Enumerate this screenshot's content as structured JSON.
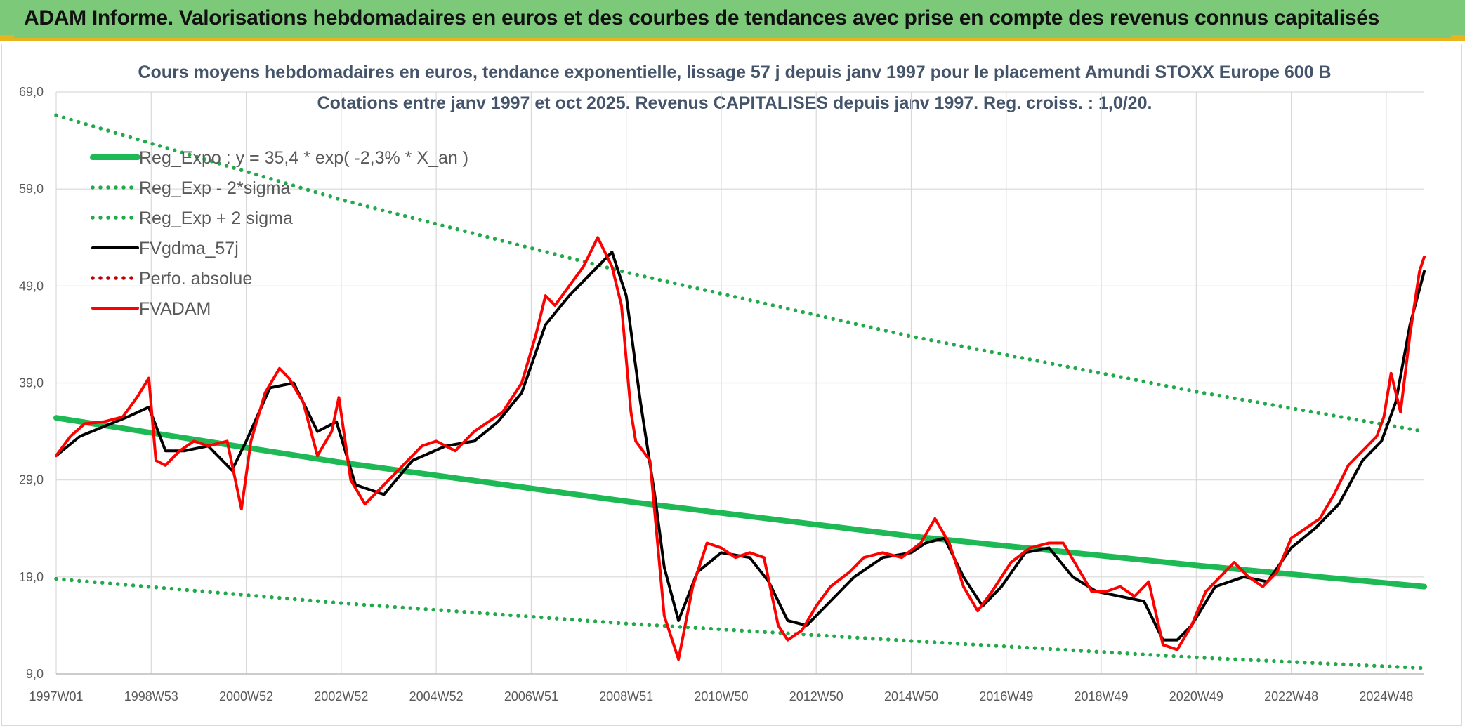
{
  "header": {
    "title": "ADAM Informe. Valorisations hebdomadaires en euros et des courbes de tendances avec prise en compte des revenus connus capitalisés"
  },
  "colors": {
    "header_bg": "#7dc97a",
    "accent": "#e9b31c",
    "reg_green": "#1db954",
    "sigma_green": "#22a94a",
    "fv_black": "#000000",
    "adam_red": "#ff0000",
    "perfo_red": "#c00000"
  },
  "chart_data": {
    "type": "line",
    "title": "Cours moyens hebdomadaires en euros, tendance exponentielle, lissage 57 j depuis janv 1997 pour le placement Amundi STOXX Europe 600 B",
    "subtitle": "Cotations entre janv 1997 et oct 2025. Revenus CAPITALISES depuis janv 1997. Reg. croiss. : 1,0/20.",
    "xlabel": "",
    "ylabel": "",
    "x_range": [
      1997.0,
      2025.8
    ],
    "ylim": [
      9,
      69
    ],
    "y_ticks": [
      "9,0",
      "19,0",
      "29,0",
      "39,0",
      "49,0",
      "59,0",
      "69,0"
    ],
    "x_ticks": [
      {
        "label": "1997W01",
        "x": 1997.0
      },
      {
        "label": "1998W53",
        "x": 1999.0
      },
      {
        "label": "2000W52",
        "x": 2001.0
      },
      {
        "label": "2002W52",
        "x": 2003.0
      },
      {
        "label": "2004W52",
        "x": 2005.0
      },
      {
        "label": "2006W51",
        "x": 2007.0
      },
      {
        "label": "2008W51",
        "x": 2009.0
      },
      {
        "label": "2010W50",
        "x": 2011.0
      },
      {
        "label": "2012W50",
        "x": 2013.0
      },
      {
        "label": "2014W50",
        "x": 2015.0
      },
      {
        "label": "2016W49",
        "x": 2017.0
      },
      {
        "label": "2018W49",
        "x": 2019.0
      },
      {
        "label": "2020W49",
        "x": 2021.0
      },
      {
        "label": "2022W48",
        "x": 2023.0
      },
      {
        "label": "2024W48",
        "x": 2025.0
      }
    ],
    "grid": true,
    "legend_position": "top-left",
    "legend": [
      {
        "label": "Reg_Expo : y = 35,4 * exp( -2,3% *  X_an )",
        "style": "solid-thick",
        "color": "#1db954"
      },
      {
        "label": "Reg_Exp - 2*sigma",
        "style": "dotted",
        "color": "#22a94a"
      },
      {
        "label": "Reg_Exp + 2 sigma",
        "style": "dotted",
        "color": "#22a94a"
      },
      {
        "label": "FVgdma_57j",
        "style": "solid",
        "color": "#000000"
      },
      {
        "label": "Perfo. absolue",
        "style": "dotted",
        "color": "#c00000"
      },
      {
        "label": "FVADAM",
        "style": "solid",
        "color": "#ff0000"
      }
    ],
    "series": [
      {
        "name": "Reg_Expo : y = 35,4 * exp( -2,3% *  X_an )",
        "x": [
          1997.0,
          2003.0,
          2009.0,
          2015.0,
          2021.0,
          2025.8
        ],
        "y": [
          35.4,
          30.8,
          26.8,
          23.2,
          20.2,
          18.0
        ]
      },
      {
        "name": "Reg_Exp - 2*sigma",
        "x": [
          1997.0,
          2003.0,
          2009.0,
          2015.0,
          2021.0,
          2025.8
        ],
        "y": [
          18.8,
          16.3,
          14.2,
          12.4,
          10.7,
          9.6
        ]
      },
      {
        "name": "Reg_Exp + 2 sigma",
        "x": [
          1997.0,
          2003.0,
          2009.0,
          2015.0,
          2021.0,
          2025.8
        ],
        "y": [
          66.6,
          57.9,
          50.4,
          43.8,
          38.1,
          34.0
        ]
      },
      {
        "name": "FVADAM",
        "x": [
          1997.0,
          1997.3,
          1997.6,
          1998.0,
          1998.4,
          1998.7,
          1998.95,
          1999.1,
          1999.3,
          1999.6,
          1999.9,
          2000.2,
          2000.6,
          2000.9,
          2001.1,
          2001.4,
          2001.7,
          2001.9,
          2002.2,
          2002.5,
          2002.8,
          2002.95,
          2003.2,
          2003.5,
          2003.9,
          2004.3,
          2004.7,
          2005.0,
          2005.4,
          2005.8,
          2006.1,
          2006.4,
          2006.8,
          2007.1,
          2007.3,
          2007.5,
          2007.8,
          2008.1,
          2008.4,
          2008.7,
          2008.9,
          2009.1,
          2009.2,
          2009.5,
          2009.8,
          2010.1,
          2010.4,
          2010.7,
          2011.0,
          2011.3,
          2011.6,
          2011.9,
          2012.2,
          2012.4,
          2012.7,
          2013.0,
          2013.3,
          2013.7,
          2014.0,
          2014.4,
          2014.8,
          2015.2,
          2015.5,
          2015.8,
          2016.1,
          2016.4,
          2016.7,
          2017.1,
          2017.5,
          2017.9,
          2018.2,
          2018.5,
          2018.8,
          2019.1,
          2019.4,
          2019.7,
          2020.0,
          2020.3,
          2020.6,
          2020.9,
          2021.2,
          2021.5,
          2021.8,
          2022.1,
          2022.4,
          2022.7,
          2023.0,
          2023.3,
          2023.6,
          2023.9,
          2024.2,
          2024.5,
          2024.8,
          2024.95,
          2025.1,
          2025.3,
          2025.5,
          2025.7,
          2025.8
        ],
        "y": [
          31.5,
          33.5,
          34.8,
          35.0,
          35.5,
          37.5,
          39.5,
          31.0,
          30.5,
          32.0,
          33.0,
          32.5,
          33.0,
          26.0,
          33.0,
          38.0,
          40.5,
          39.5,
          37.0,
          31.5,
          34.0,
          37.5,
          29.0,
          26.5,
          28.5,
          30.5,
          32.5,
          33.0,
          32.0,
          34.0,
          35.0,
          36.0,
          39.0,
          44.0,
          48.0,
          47.0,
          49.0,
          51.0,
          54.0,
          51.0,
          47.0,
          36.0,
          33.0,
          31.0,
          15.0,
          10.5,
          18.0,
          22.5,
          22.0,
          21.0,
          21.5,
          21.0,
          14.0,
          12.5,
          13.5,
          16.0,
          18.0,
          19.5,
          21.0,
          21.5,
          21.0,
          22.5,
          25.0,
          22.5,
          18.0,
          15.5,
          17.5,
          20.5,
          22.0,
          22.5,
          22.5,
          20.0,
          17.5,
          17.5,
          18.0,
          17.0,
          18.5,
          12.0,
          11.5,
          14.0,
          17.5,
          19.0,
          20.5,
          19.0,
          18.0,
          19.5,
          23.0,
          24.0,
          25.0,
          27.5,
          30.5,
          32.0,
          33.5,
          35.5,
          40.0,
          36.0,
          44.0,
          50.5,
          52.0
        ]
      },
      {
        "name": "FVgdma_57j",
        "x": [
          1997.0,
          1997.5,
          1998.0,
          1998.5,
          1998.95,
          1999.3,
          1999.7,
          2000.2,
          2000.7,
          2001.0,
          2001.5,
          2002.0,
          2002.5,
          2002.9,
          2003.3,
          2003.9,
          2004.5,
          2005.2,
          2005.8,
          2006.3,
          2006.8,
          2007.3,
          2007.8,
          2008.3,
          2008.7,
          2009.0,
          2009.3,
          2009.6,
          2009.8,
          2010.1,
          2010.5,
          2011.0,
          2011.6,
          2012.0,
          2012.4,
          2012.8,
          2013.3,
          2013.8,
          2014.4,
          2015.0,
          2015.3,
          2015.7,
          2016.1,
          2016.5,
          2016.9,
          2017.4,
          2017.9,
          2018.4,
          2018.9,
          2019.4,
          2019.9,
          2020.3,
          2020.6,
          2020.9,
          2021.4,
          2022.0,
          2022.5,
          2023.0,
          2023.5,
          2024.0,
          2024.5,
          2024.9,
          2025.2,
          2025.5,
          2025.8
        ],
        "y": [
          31.5,
          33.5,
          34.5,
          35.5,
          36.5,
          32.0,
          32.0,
          32.5,
          30.0,
          33.0,
          38.5,
          39.0,
          34.0,
          35.0,
          28.5,
          27.5,
          31.0,
          32.5,
          33.0,
          35.0,
          38.0,
          45.0,
          48.0,
          50.5,
          52.5,
          48.0,
          37.0,
          27.5,
          20.0,
          14.5,
          19.5,
          21.5,
          21.0,
          18.5,
          14.5,
          14.0,
          16.5,
          19.0,
          21.0,
          21.5,
          22.5,
          23.0,
          19.0,
          16.0,
          18.0,
          21.5,
          22.0,
          19.0,
          17.5,
          17.0,
          16.5,
          12.5,
          12.5,
          14.0,
          18.0,
          19.0,
          18.5,
          22.0,
          24.0,
          26.5,
          31.0,
          33.0,
          37.0,
          45.0,
          50.5
        ]
      }
    ]
  }
}
